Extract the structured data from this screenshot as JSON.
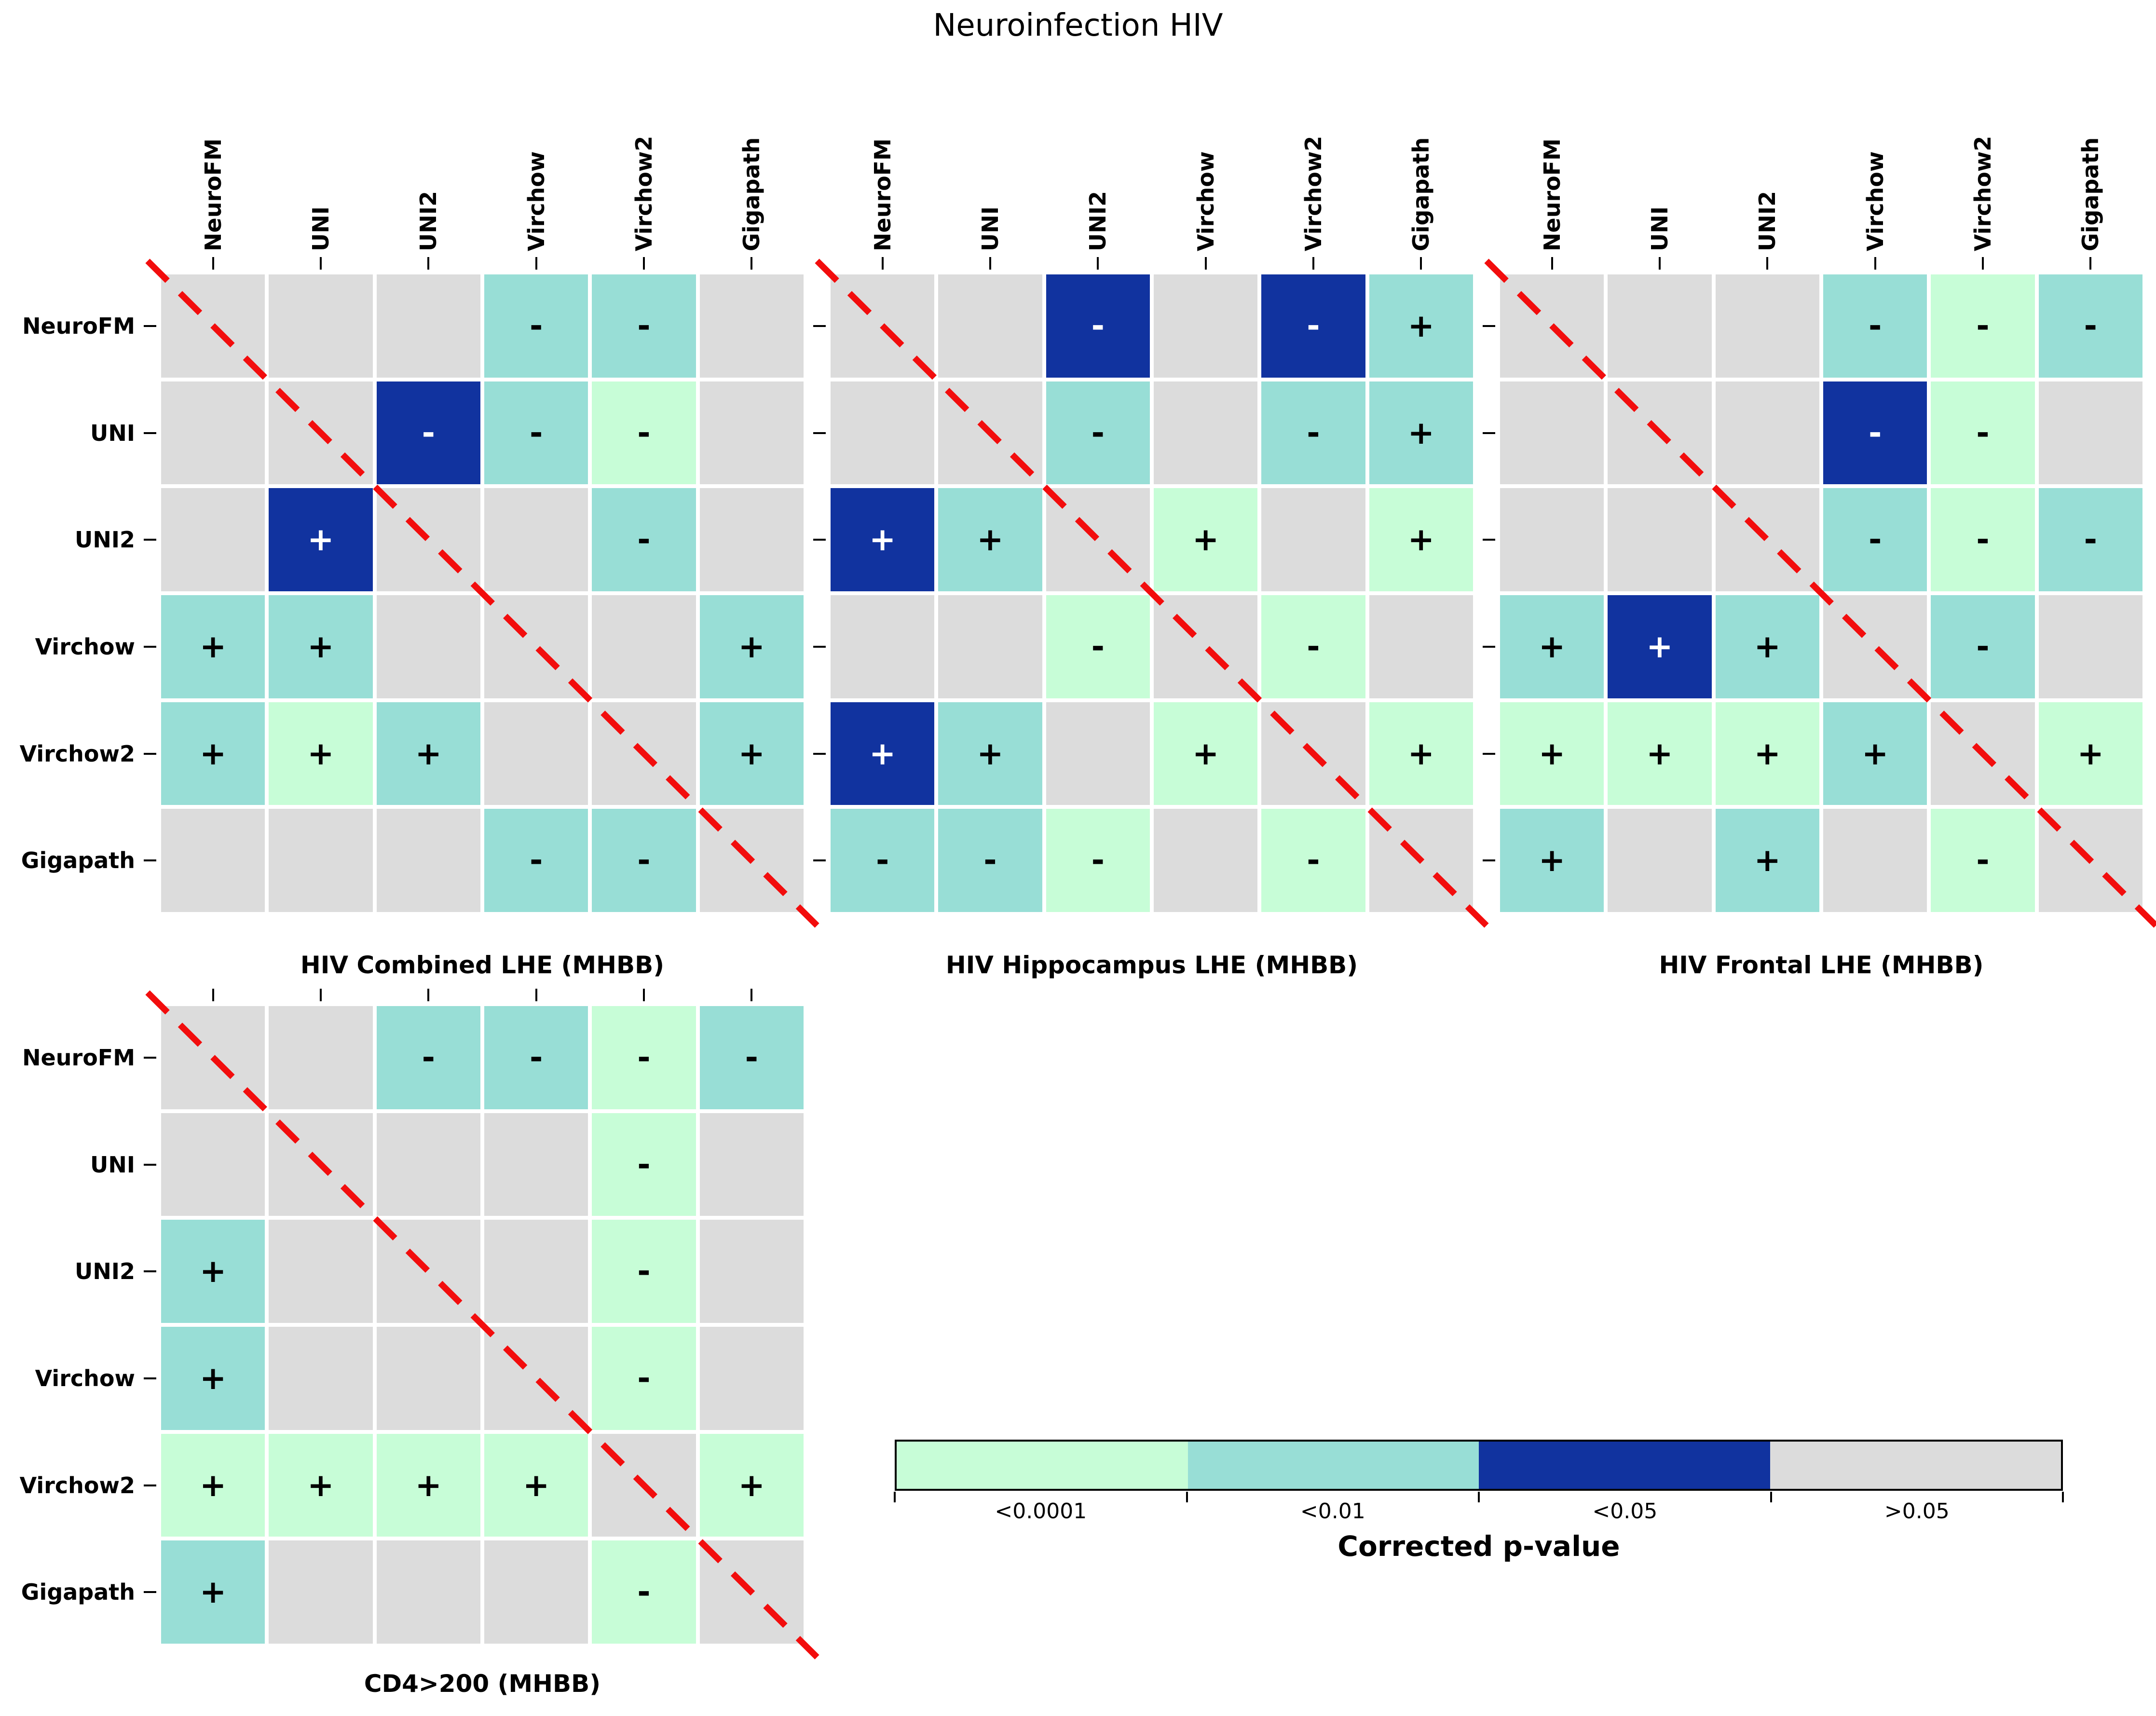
{
  "figure": {
    "title": "Neuroinfection HIV",
    "models": [
      "NeuroFM",
      "UNI",
      "UNI2",
      "Virchow",
      "Virchow2",
      "Gigapath"
    ],
    "colors": {
      "p_lt_0001": "#c7fdd7",
      "p_lt_01": "#98ded6",
      "p_lt_05": "#11339f",
      "p_gt_05": "#dcdcdc",
      "diagonal_line": "#f20d0d",
      "sign_on_dark": "#ffffff",
      "sign_on_light": "#000000"
    },
    "cell_codes": {
      "D": "diagonal (self comparison, no value)",
      "G": ">0.05",
      "T": "<0.01",
      "M": "<0.0001",
      "B": "<0.05",
      "+": "positive difference",
      "-": "negative difference"
    },
    "legend": {
      "title": "Corrected p-value",
      "entries": [
        {
          "label": "<0.0001",
          "code": "M",
          "color": "#c7fdd7"
        },
        {
          "label": "<0.01",
          "code": "T",
          "color": "#98ded6"
        },
        {
          "label": "<0.05",
          "code": "B",
          "color": "#11339f"
        },
        {
          "label": ">0.05",
          "code": "G",
          "color": "#dcdcdc"
        }
      ]
    }
  },
  "chart_data": [
    {
      "type": "heatmap",
      "title": "HIV Combined LHE (MHBB)",
      "row_labels": [
        "NeuroFM",
        "UNI",
        "UNI2",
        "Virchow",
        "Virchow2",
        "Gigapath"
      ],
      "col_labels": [
        "NeuroFM",
        "UNI",
        "UNI2",
        "Virchow",
        "Virchow2",
        "Gigapath"
      ],
      "show_col_labels": true,
      "show_row_labels": true,
      "rows": [
        [
          "D",
          "G",
          "G",
          "T-",
          "T-",
          "G"
        ],
        [
          "G",
          "D",
          "B-",
          "T-",
          "M-",
          "G"
        ],
        [
          "G",
          "B+",
          "D",
          "G",
          "T-",
          "G"
        ],
        [
          "T+",
          "T+",
          "G",
          "D",
          "G",
          "T+"
        ],
        [
          "T+",
          "M+",
          "T+",
          "G",
          "D",
          "T+"
        ],
        [
          "G",
          "G",
          "G",
          "T-",
          "T-",
          "D"
        ]
      ]
    },
    {
      "type": "heatmap",
      "title": "HIV Hippocampus LHE (MHBB)",
      "row_labels": [
        "NeuroFM",
        "UNI",
        "UNI2",
        "Virchow",
        "Virchow2",
        "Gigapath"
      ],
      "col_labels": [
        "NeuroFM",
        "UNI",
        "UNI2",
        "Virchow",
        "Virchow2",
        "Gigapath"
      ],
      "show_col_labels": true,
      "show_row_labels": false,
      "rows": [
        [
          "D",
          "G",
          "B-",
          "G",
          "B-",
          "T+"
        ],
        [
          "G",
          "D",
          "T-",
          "G",
          "T-",
          "T+"
        ],
        [
          "B+",
          "T+",
          "D",
          "M+",
          "G",
          "M+"
        ],
        [
          "G",
          "G",
          "M-",
          "D",
          "M-",
          "G"
        ],
        [
          "B+",
          "T+",
          "G",
          "M+",
          "D",
          "M+"
        ],
        [
          "T-",
          "T-",
          "M-",
          "G",
          "M-",
          "D"
        ]
      ]
    },
    {
      "type": "heatmap",
      "title": "HIV Frontal LHE (MHBB)",
      "row_labels": [
        "NeuroFM",
        "UNI",
        "UNI2",
        "Virchow",
        "Virchow2",
        "Gigapath"
      ],
      "col_labels": [
        "NeuroFM",
        "UNI",
        "UNI2",
        "Virchow",
        "Virchow2",
        "Gigapath"
      ],
      "show_col_labels": true,
      "show_row_labels": false,
      "rows": [
        [
          "D",
          "G",
          "G",
          "T-",
          "M-",
          "T-"
        ],
        [
          "G",
          "D",
          "G",
          "B-",
          "M-",
          "G"
        ],
        [
          "G",
          "G",
          "D",
          "T-",
          "M-",
          "T-"
        ],
        [
          "T+",
          "B+",
          "T+",
          "D",
          "T-",
          "G"
        ],
        [
          "M+",
          "M+",
          "M+",
          "T+",
          "D",
          "M+"
        ],
        [
          "T+",
          "G",
          "T+",
          "G",
          "M-",
          "D"
        ]
      ]
    },
    {
      "type": "heatmap",
      "title": "CD4>200 (MHBB)",
      "row_labels": [
        "NeuroFM",
        "UNI",
        "UNI2",
        "Virchow",
        "Virchow2",
        "Gigapath"
      ],
      "col_labels": [
        "NeuroFM",
        "UNI",
        "UNI2",
        "Virchow",
        "Virchow2",
        "Gigapath"
      ],
      "show_col_labels": false,
      "show_row_labels": true,
      "rows": [
        [
          "D",
          "G",
          "T-",
          "T-",
          "M-",
          "T-"
        ],
        [
          "G",
          "D",
          "G",
          "G",
          "M-",
          "G"
        ],
        [
          "T+",
          "G",
          "D",
          "G",
          "M-",
          "G"
        ],
        [
          "T+",
          "G",
          "G",
          "D",
          "M-",
          "G"
        ],
        [
          "M+",
          "M+",
          "M+",
          "M+",
          "D",
          "M+"
        ],
        [
          "T+",
          "G",
          "G",
          "G",
          "M-",
          "D"
        ]
      ]
    }
  ]
}
